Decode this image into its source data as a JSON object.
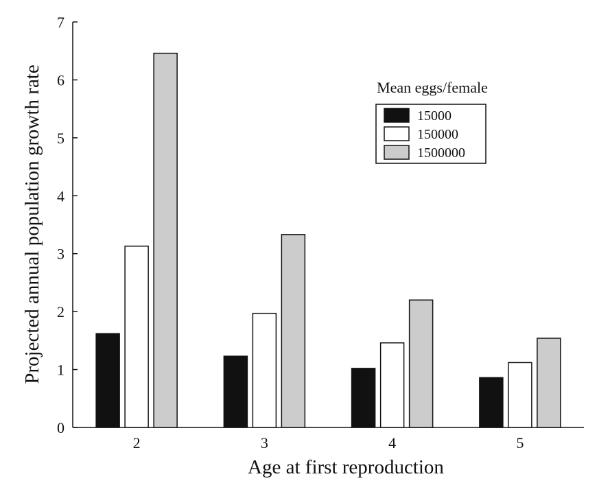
{
  "chart_data": {
    "type": "bar",
    "title": "",
    "xlabel": "Age at first reproduction",
    "ylabel": "Projected annual population growth rate",
    "categories": [
      "2",
      "3",
      "4",
      "5"
    ],
    "ylim": [
      0,
      7
    ],
    "yticks": [
      "0",
      "1",
      "2",
      "3",
      "4",
      "5",
      "6",
      "7"
    ],
    "grid": false,
    "legend": {
      "title": "Mean eggs/female",
      "placement": "top-right"
    },
    "series": [
      {
        "name": "15000",
        "color": "#111111",
        "values": [
          1.62,
          1.23,
          1.02,
          0.86
        ]
      },
      {
        "name": "150000",
        "color": "#ffffff",
        "values": [
          3.13,
          1.97,
          1.46,
          1.12
        ]
      },
      {
        "name": "1500000",
        "color": "#cccccc",
        "values": [
          6.46,
          3.33,
          2.2,
          1.54
        ]
      }
    ]
  }
}
